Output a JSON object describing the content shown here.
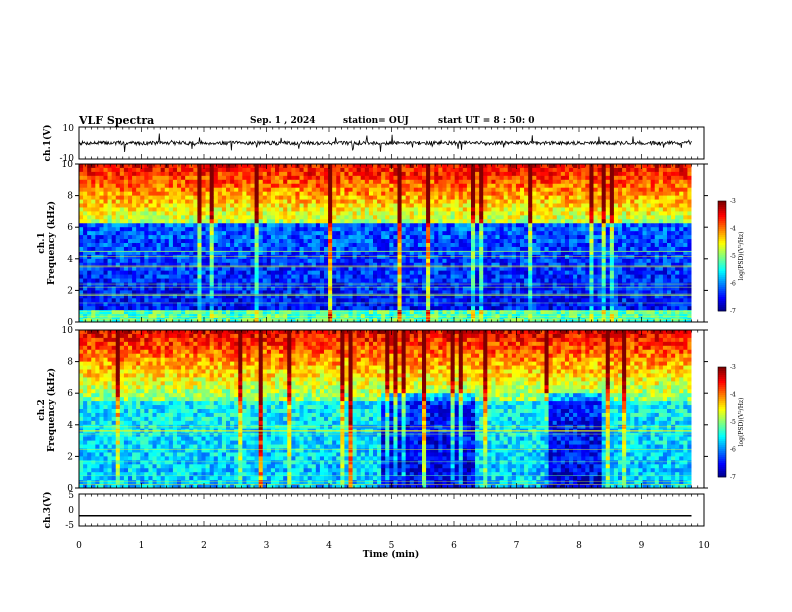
{
  "header": {
    "title": "VLF Spectra",
    "date": "Sep. 1 , 2024",
    "station": "station= OUJ",
    "start": "start UT = 8 : 50: 0"
  },
  "chart_data": [
    {
      "type": "line",
      "panel": "ch1-waveform",
      "ylabel": "ch.1(V)",
      "ylim": [
        -10,
        10
      ],
      "yticks": [
        10,
        -10
      ],
      "xlim": [
        0,
        10
      ],
      "baseline": 0
    },
    {
      "type": "heatmap",
      "panel": "ch1-spectrogram",
      "ylabel": "ch.1\nFrequency (kHz)",
      "ylim": [
        0,
        10
      ],
      "yticks": [
        0,
        2,
        4,
        6,
        8,
        10
      ],
      "xlim": [
        0,
        10
      ],
      "colorbar": {
        "label": "log(PSD)(V²/Hz)",
        "range": [
          -7,
          -3
        ],
        "ticks": [
          -3,
          -4,
          -5,
          -6,
          -7
        ]
      }
    },
    {
      "type": "heatmap",
      "panel": "ch2-spectrogram",
      "ylabel": "ch.2\nFrequency (kHz)",
      "ylim": [
        0,
        10
      ],
      "yticks": [
        0,
        2,
        4,
        6,
        8,
        10
      ],
      "xlim": [
        0,
        10
      ],
      "colorbar": {
        "label": "log(PSD)(V²/Hz)",
        "range": [
          -7,
          -3
        ],
        "ticks": [
          -3,
          -4,
          -5,
          -6,
          -7
        ]
      }
    },
    {
      "type": "line",
      "panel": "ch3-waveform",
      "ylabel": "ch.3(V)",
      "ylim": [
        -5,
        5
      ],
      "yticks": [
        5,
        0,
        -5
      ],
      "xlim": [
        0,
        10
      ],
      "baseline": -1.8
    }
  ],
  "xaxis": {
    "label": "Time (min)",
    "ticks": [
      0,
      1,
      2,
      3,
      4,
      5,
      6,
      7,
      8,
      9,
      10
    ]
  },
  "colors": {
    "low": "#00007f",
    "mid": "#00ff80",
    "high": "#ff0000"
  }
}
